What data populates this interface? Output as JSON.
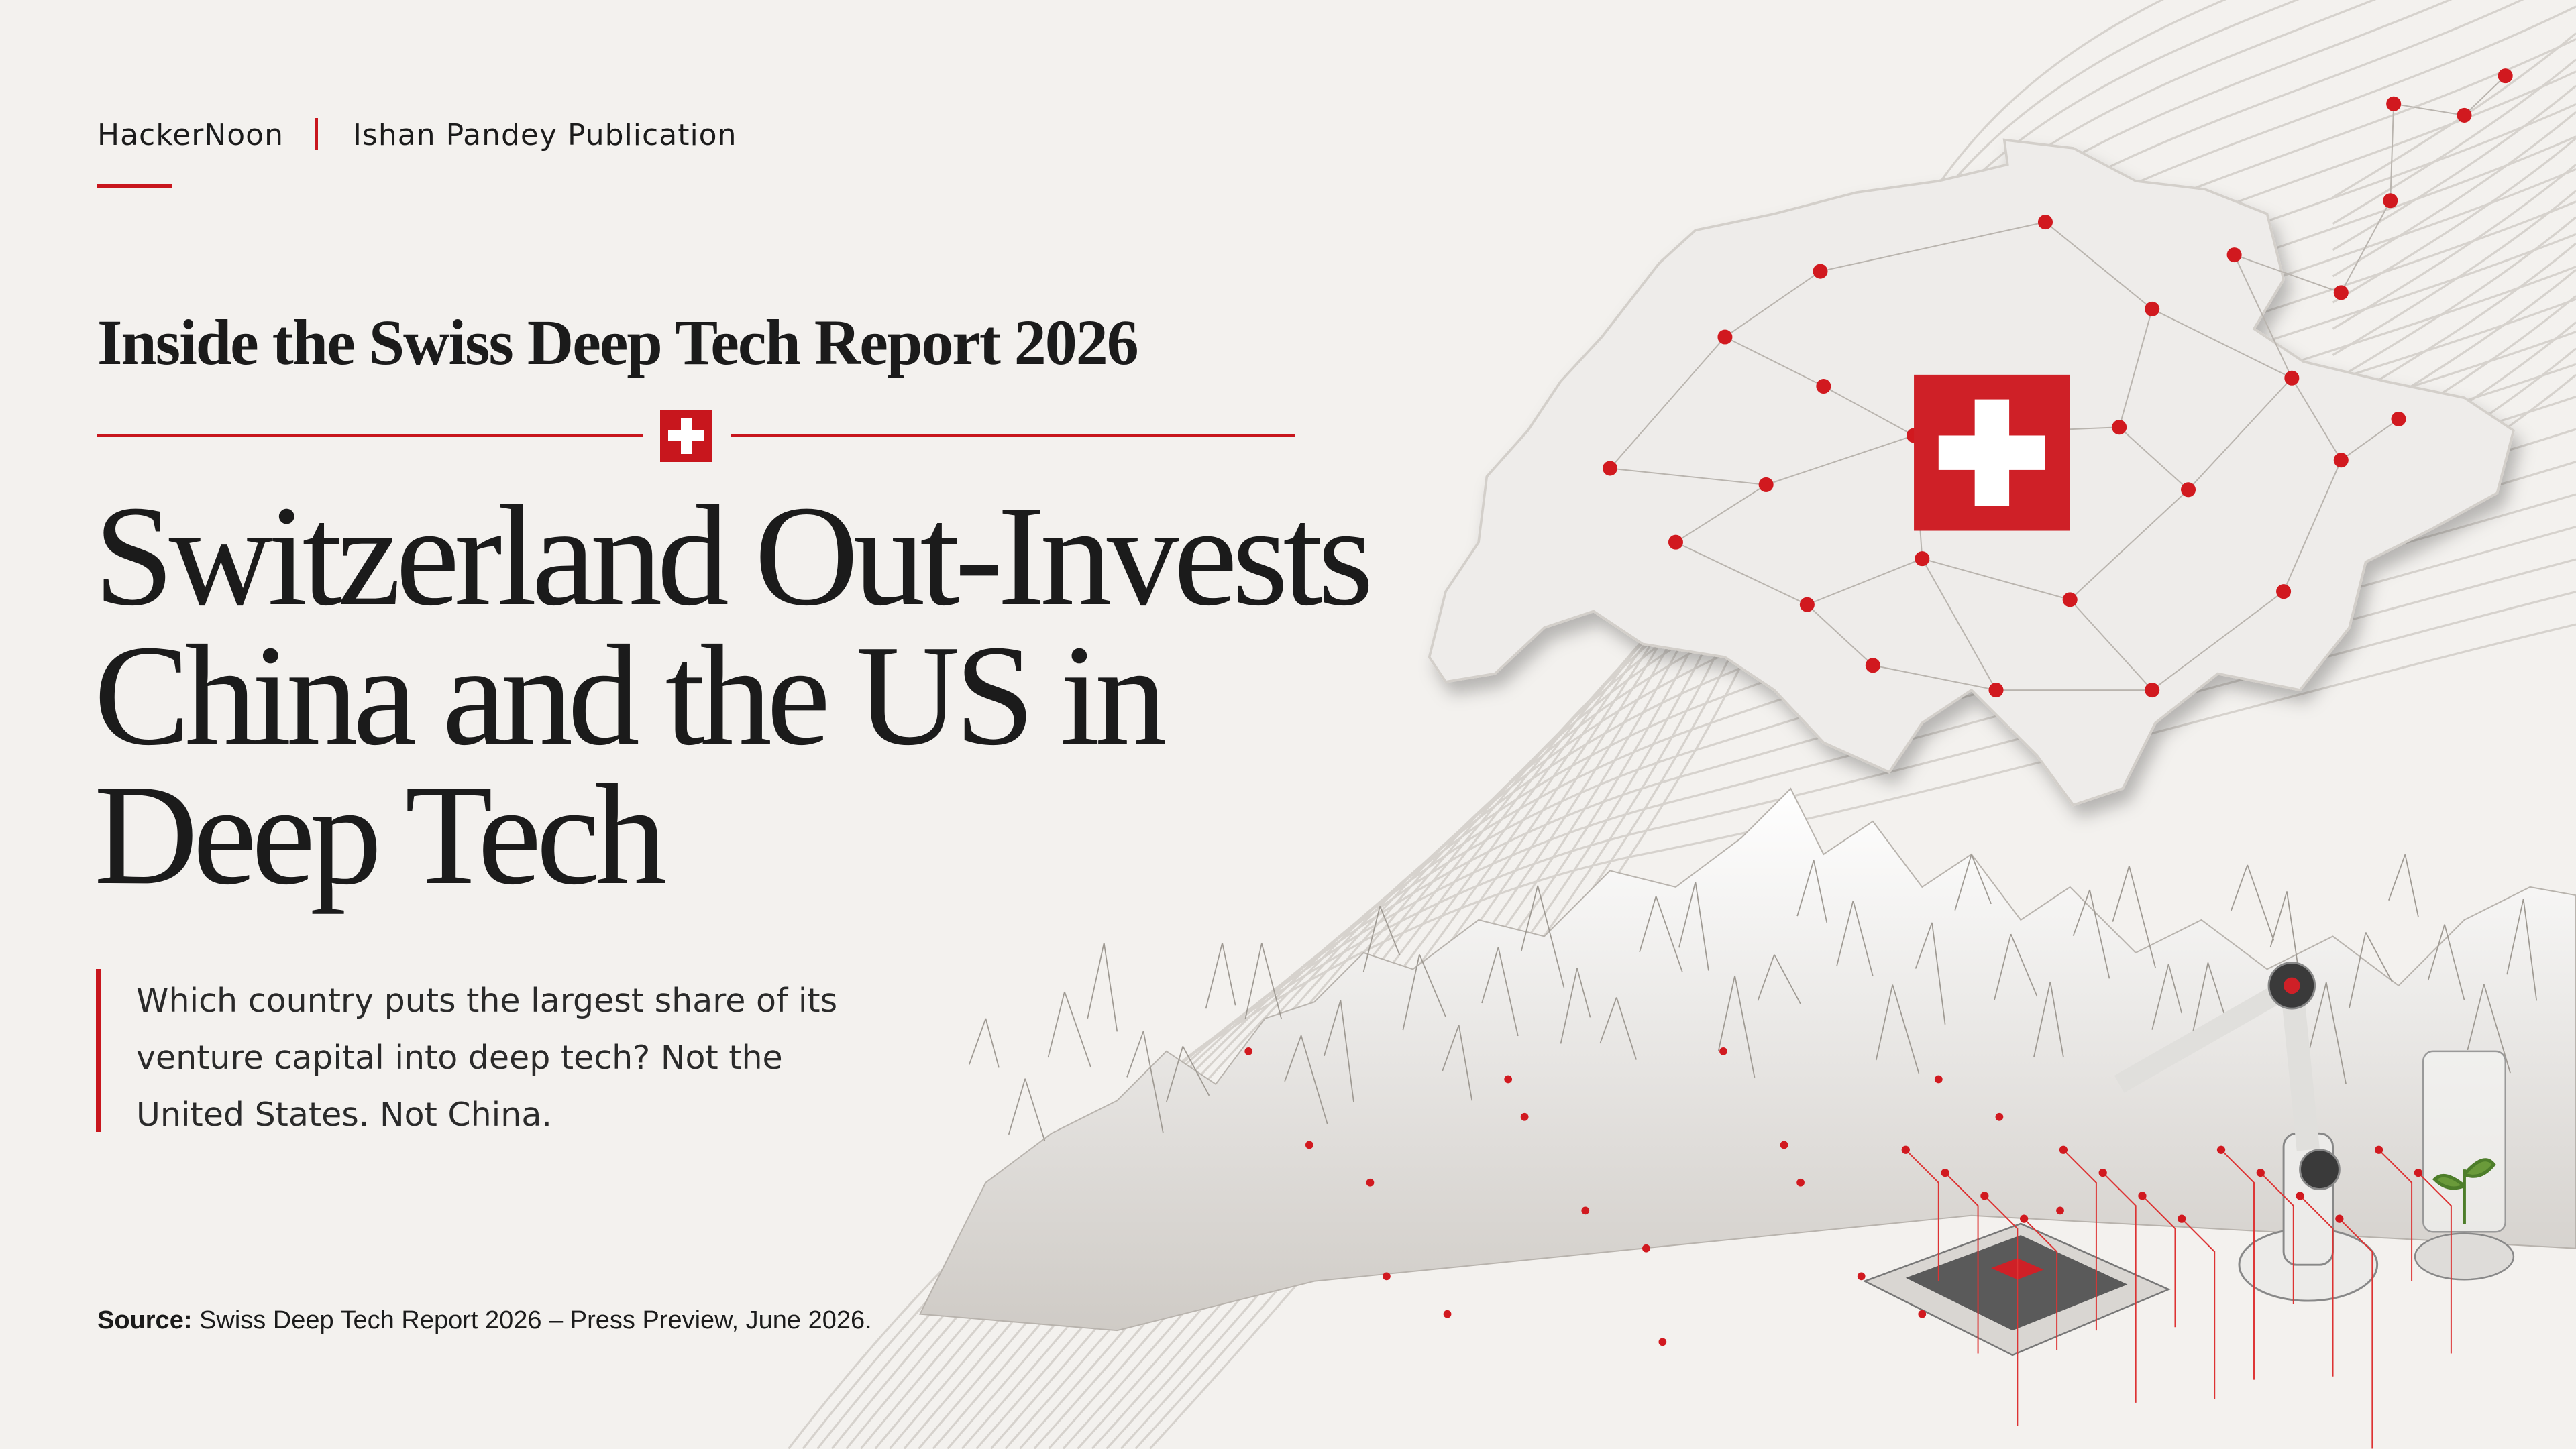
{
  "header": {
    "brand": "HackerNoon",
    "publication": "Ishan Pandey Publication"
  },
  "kicker": "Inside the Swiss Deep Tech Report 2026",
  "headline": [
    "Switzerland Out-Invests",
    "China and the US in",
    "Deep Tech"
  ],
  "dek": [
    "Which country puts the largest share of its",
    "venture capital into deep tech? Not the",
    "United States. Not China."
  ],
  "source": {
    "label": "Source:",
    "text": "Swiss Deep Tech Report 2026 – Press Preview, June 2026."
  }
}
